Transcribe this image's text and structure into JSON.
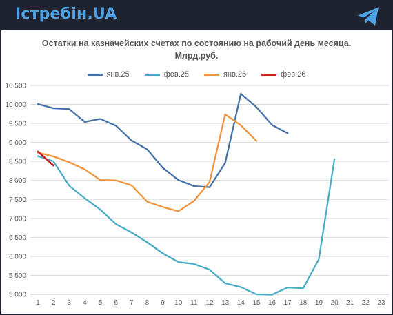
{
  "header": {
    "brand": "Істребін.UA",
    "telegram_icon": "telegram-icon"
  },
  "chart_data": {
    "type": "line",
    "title_line1": "Остатки на казначейских счетах по состоянию на рабочий день месяца.",
    "title_line2": "Млрд.руб.",
    "xlabel": "",
    "ylabel": "",
    "legend_position": "top",
    "grid": true,
    "ylim": [
      5000,
      10500
    ],
    "yticks": [
      5000,
      5500,
      6000,
      6500,
      7000,
      7500,
      8000,
      8500,
      9000,
      9500,
      10000,
      10500
    ],
    "ytick_labels": [
      "5 000",
      "5 500",
      "6 000",
      "6 500",
      "7 000",
      "7 500",
      "8 000",
      "8 500",
      "9 000",
      "9 500",
      "10 000",
      "10 500"
    ],
    "xlim": [
      1,
      23
    ],
    "x_categories": [
      1,
      2,
      3,
      4,
      5,
      6,
      7,
      8,
      9,
      10,
      11,
      12,
      13,
      14,
      15,
      16,
      17,
      18,
      19,
      20,
      21,
      22,
      23
    ],
    "series": [
      {
        "name": "янв.25",
        "color": "#4472a8",
        "x": [
          1,
          2,
          3,
          4,
          5,
          6,
          7,
          8,
          9,
          10,
          11,
          12,
          13,
          14,
          15,
          16,
          17
        ],
        "values": [
          10010,
          9900,
          9880,
          9540,
          9620,
          9440,
          9050,
          8820,
          8330,
          8010,
          7850,
          7820,
          8460,
          10280,
          9930,
          9460,
          9240
        ]
      },
      {
        "name": "фев.25",
        "color": "#4aabc6",
        "x": [
          1,
          2,
          3,
          4,
          5,
          6,
          7,
          8,
          9,
          10,
          11,
          12,
          13,
          14,
          15,
          16,
          17,
          18,
          19,
          20
        ],
        "values": [
          8640,
          8500,
          7860,
          7530,
          7230,
          6850,
          6630,
          6370,
          6080,
          5850,
          5800,
          5650,
          5290,
          5190,
          5000,
          4990,
          5180,
          5160,
          5930,
          8560
        ]
      },
      {
        "name": "янв.26",
        "color": "#f0953e",
        "x": [
          1,
          2,
          3,
          4,
          5,
          6,
          7,
          8,
          9,
          10,
          11,
          12,
          13,
          14,
          15
        ],
        "values": [
          8730,
          8630,
          8480,
          8290,
          8010,
          8000,
          7870,
          7440,
          7300,
          7190,
          7460,
          7960,
          9740,
          9450,
          9040
        ]
      },
      {
        "name": "фев.26",
        "color": "#cc1f1f",
        "x": [
          1,
          2
        ],
        "values": [
          8760,
          8390
        ]
      }
    ]
  }
}
